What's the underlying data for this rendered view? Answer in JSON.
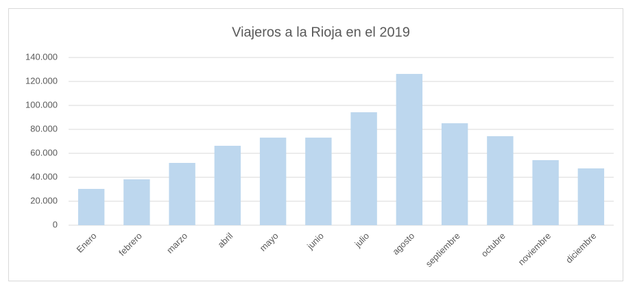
{
  "chart_data": {
    "type": "bar",
    "title": "Viajeros a la Rioja en el 2019",
    "categories": [
      "Enero",
      "febrero",
      "marzo",
      "abril",
      "mayo",
      "junio",
      "julio",
      "agosto",
      "septiembre",
      "octubre",
      "noviembre",
      "diciembre"
    ],
    "values": [
      30300,
      38300,
      52000,
      66300,
      73100,
      73100,
      94300,
      126300,
      85100,
      74300,
      54300,
      47400
    ],
    "color": "#bdd7ee",
    "ylim": [
      0,
      140000
    ],
    "yticks": [
      0,
      {
        "value": 20000,
        "label": "20.000"
      },
      {
        "value": 40000,
        "label": "40.000"
      },
      {
        "value": 60000,
        "label": "60.000"
      },
      {
        "value": 80000,
        "label": "80.000"
      },
      {
        "value": 100000,
        "label": "100.000"
      },
      {
        "value": 120000,
        "label": "120.000"
      },
      {
        "value": 140000,
        "label": "140.000"
      }
    ],
    "grid": true
  }
}
